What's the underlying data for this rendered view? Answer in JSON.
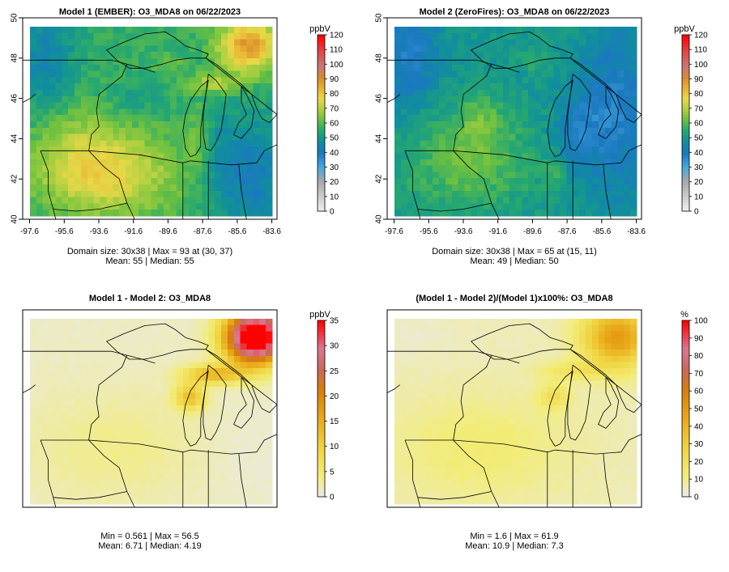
{
  "chart_data": [
    {
      "type": "heatmap",
      "title": "Model 1 (EMBER): O3_MDA8 on 06/22/2023",
      "xlabel": "",
      "ylabel": "",
      "x_ticks": [
        "-97.6",
        "-95.6",
        "-93.6",
        "-91.6",
        "-89.6",
        "-87.6",
        "-85.6",
        "-83.6"
      ],
      "y_ticks": [
        "40",
        "42",
        "44",
        "46",
        "48",
        "50"
      ],
      "xlim": [
        -98,
        -83.3
      ],
      "ylim": [
        40,
        50
      ],
      "grid": {
        "rows": 30,
        "cols": 38
      },
      "colorbar": {
        "title": "ppbV",
        "min": 0,
        "max": 120,
        "ticks": [
          "0",
          "10",
          "20",
          "30",
          "40",
          "50",
          "60",
          "70",
          "80",
          "90",
          "100",
          "110",
          "120"
        ]
      },
      "palette": "ozone",
      "stats": [
        "Domain size: 30x38 | Max = 93 at (30, 37)",
        "Mean: 55 |  Median: 55"
      ],
      "mean": 55,
      "median": 55,
      "max": 93,
      "max_at": [
        30,
        37
      ]
    },
    {
      "type": "heatmap",
      "title": "Model 2 (ZeroFires): O3_MDA8 on 06/22/2023",
      "xlabel": "",
      "ylabel": "",
      "x_ticks": [
        "-97.6",
        "-95.6",
        "-93.6",
        "-91.6",
        "-89.6",
        "-87.6",
        "-85.6",
        "-83.6"
      ],
      "y_ticks": [
        "40",
        "42",
        "44",
        "46",
        "48",
        "50"
      ],
      "xlim": [
        -98,
        -83.3
      ],
      "ylim": [
        40,
        50
      ],
      "grid": {
        "rows": 30,
        "cols": 38
      },
      "colorbar": {
        "title": "ppbV",
        "min": 0,
        "max": 120,
        "ticks": [
          "0",
          "10",
          "20",
          "30",
          "40",
          "50",
          "60",
          "70",
          "80",
          "90",
          "100",
          "110",
          "120"
        ]
      },
      "palette": "ozone",
      "stats": [
        "Domain size: 30x38 | Max = 65 at (15, 11)",
        "Mean: 49 |  Median: 50"
      ],
      "mean": 49,
      "median": 50,
      "max": 65,
      "max_at": [
        15,
        11
      ]
    },
    {
      "type": "heatmap",
      "title": "Model 1 - Model 2: O3_MDA8",
      "xlabel": "",
      "ylabel": "",
      "x_ticks": [],
      "y_ticks": [],
      "xlim": [
        -98,
        -83.3
      ],
      "ylim": [
        40,
        50
      ],
      "grid": {
        "rows": 30,
        "cols": 38
      },
      "colorbar": {
        "title": "ppbV",
        "min": 0,
        "max": 35,
        "ticks": [
          "0",
          "5",
          "10",
          "15",
          "20",
          "25",
          "30",
          "35"
        ]
      },
      "palette": "diff",
      "stats": [
        "Min = 0.561 | Max = 56.5",
        "Mean: 6.71 |  Median: 4.19"
      ],
      "min": 0.561,
      "max": 56.5,
      "mean": 6.71,
      "median": 4.19
    },
    {
      "type": "heatmap",
      "title": "(Model 1 - Model 2)/(Model 1)x100%: O3_MDA8",
      "xlabel": "",
      "ylabel": "",
      "x_ticks": [],
      "y_ticks": [],
      "xlim": [
        -98,
        -83.3
      ],
      "ylim": [
        40,
        50
      ],
      "grid": {
        "rows": 30,
        "cols": 38
      },
      "colorbar": {
        "title": "%",
        "min": 0,
        "max": 100,
        "ticks": [
          "0",
          "10",
          "20",
          "30",
          "40",
          "50",
          "60",
          "70",
          "80",
          "90",
          "100"
        ]
      },
      "palette": "diff",
      "stats": [
        "Min = 1.6 | Max = 61.9",
        "Mean: 10.9 |  Median: 7.3"
      ],
      "min": 1.6,
      "max": 61.9,
      "mean": 10.9,
      "median": 7.3
    }
  ]
}
